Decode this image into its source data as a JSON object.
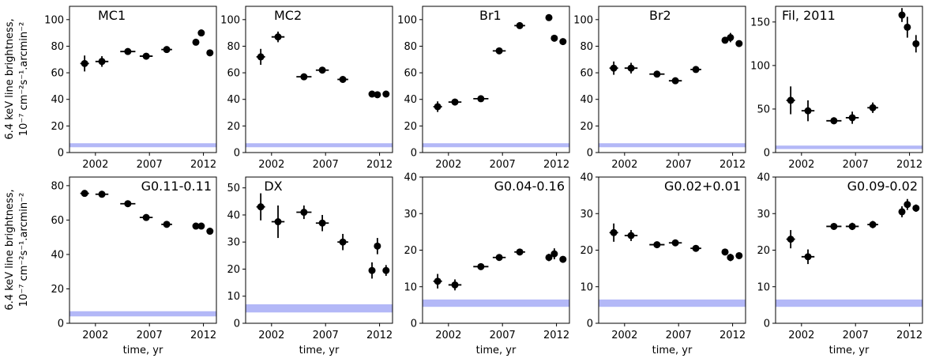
{
  "figure": {
    "ylabel_line1": "6.4 keV line brightness,",
    "ylabel_line2": "10⁻⁷ cm⁻²s⁻¹.arcmin⁻²",
    "xlabel": "time, yr"
  },
  "chart_data": [
    {
      "type": "scatter",
      "title": "MC1",
      "xlabel": "",
      "ylabel": "6.4 keV line brightness, 10⁻⁷ cm⁻²s⁻¹.arcmin⁻²",
      "xlim": [
        1999.6,
        2013.2
      ],
      "ylim": [
        0,
        110
      ],
      "xticks": [
        2002,
        2007,
        2012
      ],
      "yticks": [
        0,
        20,
        40,
        60,
        80,
        100
      ],
      "background_band": [
        4,
        7
      ],
      "band_color": "#b3b8f7",
      "points": [
        {
          "x": 2001.0,
          "y": 67,
          "yerr": 6,
          "xerr": 0.4
        },
        {
          "x": 2002.6,
          "y": 68.5,
          "yerr": 4,
          "xerr": 0.6
        },
        {
          "x": 2005.0,
          "y": 76,
          "yerr": 1.5,
          "xerr": 0.7
        },
        {
          "x": 2006.7,
          "y": 72.5,
          "yerr": 1.5,
          "xerr": 0.6
        },
        {
          "x": 2008.6,
          "y": 77.5,
          "yerr": 1.5,
          "xerr": 0.5
        },
        {
          "x": 2011.3,
          "y": 83,
          "yerr": 2,
          "xerr": 0.2
        },
        {
          "x": 2011.8,
          "y": 90,
          "yerr": 2.5,
          "xerr": 0.2
        },
        {
          "x": 2012.6,
          "y": 75,
          "yerr": 1.5,
          "xerr": 0.2
        }
      ]
    },
    {
      "type": "scatter",
      "title": "MC2",
      "xlabel": "",
      "ylabel": "",
      "xlim": [
        1999.6,
        2013.2
      ],
      "ylim": [
        0,
        110
      ],
      "xticks": [
        2002,
        2007,
        2012
      ],
      "yticks": [
        0,
        20,
        40,
        60,
        80,
        100
      ],
      "background_band": [
        4,
        7
      ],
      "band_color": "#b3b8f7",
      "points": [
        {
          "x": 2001.0,
          "y": 72,
          "yerr": 6,
          "xerr": 0.4
        },
        {
          "x": 2002.6,
          "y": 87,
          "yerr": 4,
          "xerr": 0.6
        },
        {
          "x": 2005.0,
          "y": 57,
          "yerr": 1.5,
          "xerr": 0.7
        },
        {
          "x": 2006.7,
          "y": 62,
          "yerr": 1.5,
          "xerr": 0.6
        },
        {
          "x": 2008.6,
          "y": 55,
          "yerr": 1.5,
          "xerr": 0.5
        },
        {
          "x": 2011.3,
          "y": 44,
          "yerr": 1.5,
          "xerr": 0.2
        },
        {
          "x": 2011.8,
          "y": 43.5,
          "yerr": 1.5,
          "xerr": 0.2
        },
        {
          "x": 2012.6,
          "y": 44,
          "yerr": 1.5,
          "xerr": 0.2
        }
      ]
    },
    {
      "type": "scatter",
      "title": "Br1",
      "xlabel": "",
      "ylabel": "",
      "xlim": [
        1999.6,
        2013.2
      ],
      "ylim": [
        0,
        110
      ],
      "xticks": [
        2002,
        2007,
        2012
      ],
      "yticks": [
        0,
        20,
        40,
        60,
        80,
        100
      ],
      "background_band": [
        4,
        7
      ],
      "band_color": "#b3b8f7",
      "points": [
        {
          "x": 2001.0,
          "y": 34.5,
          "yerr": 4,
          "xerr": 0.4
        },
        {
          "x": 2002.6,
          "y": 38,
          "yerr": 2.5,
          "xerr": 0.6
        },
        {
          "x": 2005.0,
          "y": 40.5,
          "yerr": 1.5,
          "xerr": 0.7
        },
        {
          "x": 2006.7,
          "y": 76.5,
          "yerr": 1.5,
          "xerr": 0.6
        },
        {
          "x": 2008.6,
          "y": 95.5,
          "yerr": 1.5,
          "xerr": 0.5
        },
        {
          "x": 2011.3,
          "y": 101.5,
          "yerr": 1.5,
          "xerr": 0.2
        },
        {
          "x": 2011.8,
          "y": 86,
          "yerr": 2.5,
          "xerr": 0.2
        },
        {
          "x": 2012.6,
          "y": 83.5,
          "yerr": 1.5,
          "xerr": 0.2
        }
      ]
    },
    {
      "type": "scatter",
      "title": "Br2",
      "xlabel": "",
      "ylabel": "",
      "xlim": [
        1999.6,
        2013.2
      ],
      "ylim": [
        0,
        110
      ],
      "xticks": [
        2002,
        2007,
        2012
      ],
      "yticks": [
        0,
        20,
        40,
        60,
        80,
        100
      ],
      "background_band": [
        4,
        7
      ],
      "band_color": "#b3b8f7",
      "points": [
        {
          "x": 2001.0,
          "y": 63.5,
          "yerr": 5,
          "xerr": 0.4
        },
        {
          "x": 2002.6,
          "y": 63.5,
          "yerr": 4,
          "xerr": 0.6
        },
        {
          "x": 2005.0,
          "y": 59,
          "yerr": 1.5,
          "xerr": 0.7
        },
        {
          "x": 2006.7,
          "y": 54,
          "yerr": 1.5,
          "xerr": 0.6
        },
        {
          "x": 2008.6,
          "y": 62.5,
          "yerr": 1.5,
          "xerr": 0.5
        },
        {
          "x": 2011.3,
          "y": 84.5,
          "yerr": 2,
          "xerr": 0.2
        },
        {
          "x": 2011.8,
          "y": 86.5,
          "yerr": 3.5,
          "xerr": 0.2
        },
        {
          "x": 2012.6,
          "y": 82,
          "yerr": 1.5,
          "xerr": 0.2
        }
      ]
    },
    {
      "type": "scatter",
      "title": "Fil, 2011",
      "xlabel": "",
      "ylabel": "",
      "xlim": [
        1999.6,
        2013.2
      ],
      "ylim": [
        0,
        168
      ],
      "xticks": [
        2002,
        2007,
        2012
      ],
      "yticks": [
        0,
        50,
        100,
        150
      ],
      "background_band": [
        4,
        8
      ],
      "band_color": "#b3b8f7",
      "points": [
        {
          "x": 2001.0,
          "y": 60,
          "yerr": 16,
          "xerr": 0.4
        },
        {
          "x": 2002.6,
          "y": 48,
          "yerr": 12,
          "xerr": 0.6
        },
        {
          "x": 2005.0,
          "y": 36.5,
          "yerr": 4,
          "xerr": 0.7
        },
        {
          "x": 2006.7,
          "y": 40,
          "yerr": 7,
          "xerr": 0.6
        },
        {
          "x": 2008.6,
          "y": 51.5,
          "yerr": 6,
          "xerr": 0.5
        },
        {
          "x": 2011.3,
          "y": 158,
          "yerr": 8,
          "xerr": 0.2
        },
        {
          "x": 2011.8,
          "y": 144,
          "yerr": 12,
          "xerr": 0.2
        },
        {
          "x": 2012.6,
          "y": 125,
          "yerr": 10,
          "xerr": 0.2
        }
      ]
    },
    {
      "type": "scatter",
      "title": "G0.11-0.11",
      "xlabel": "time, yr",
      "ylabel": "6.4 keV line brightness, 10⁻⁷ cm⁻²s⁻¹.arcmin⁻²",
      "xlim": [
        1999.6,
        2013.2
      ],
      "ylim": [
        0,
        85
      ],
      "xticks": [
        2002,
        2007,
        2012
      ],
      "yticks": [
        0,
        20,
        40,
        60,
        80
      ],
      "background_band": [
        4,
        7
      ],
      "band_color": "#b3b8f7",
      "points": [
        {
          "x": 2001.0,
          "y": 75.5,
          "yerr": 1.5,
          "xerr": 0.4
        },
        {
          "x": 2002.6,
          "y": 75,
          "yerr": 1.5,
          "xerr": 0.6
        },
        {
          "x": 2005.0,
          "y": 69.5,
          "yerr": 1.5,
          "xerr": 0.7
        },
        {
          "x": 2006.7,
          "y": 61.5,
          "yerr": 1.5,
          "xerr": 0.6
        },
        {
          "x": 2008.6,
          "y": 57.5,
          "yerr": 1.5,
          "xerr": 0.5
        },
        {
          "x": 2011.3,
          "y": 56.5,
          "yerr": 1.5,
          "xerr": 0.2
        },
        {
          "x": 2011.8,
          "y": 56.5,
          "yerr": 1.5,
          "xerr": 0.2
        },
        {
          "x": 2012.6,
          "y": 53.5,
          "yerr": 1.5,
          "xerr": 0.2
        }
      ]
    },
    {
      "type": "scatter",
      "title": "DX",
      "xlabel": "time, yr",
      "ylabel": "",
      "xlim": [
        1999.6,
        2013.2
      ],
      "ylim": [
        0,
        54
      ],
      "xticks": [
        2002,
        2007,
        2012
      ],
      "yticks": [
        0,
        10,
        20,
        30,
        40,
        50
      ],
      "background_band": [
        4,
        7
      ],
      "band_color": "#b3b8f7",
      "points": [
        {
          "x": 2001.0,
          "y": 43,
          "yerr": 5,
          "xerr": 0.4
        },
        {
          "x": 2002.6,
          "y": 37.5,
          "yerr": 6,
          "xerr": 0.6
        },
        {
          "x": 2005.0,
          "y": 41,
          "yerr": 2.5,
          "xerr": 0.7
        },
        {
          "x": 2006.7,
          "y": 37,
          "yerr": 3,
          "xerr": 0.6
        },
        {
          "x": 2008.6,
          "y": 30,
          "yerr": 3,
          "xerr": 0.5
        },
        {
          "x": 2011.3,
          "y": 19.5,
          "yerr": 3,
          "xerr": 0.2
        },
        {
          "x": 2011.8,
          "y": 28.5,
          "yerr": 3,
          "xerr": 0.2
        },
        {
          "x": 2012.6,
          "y": 19.5,
          "yerr": 2,
          "xerr": 0.2
        }
      ]
    },
    {
      "type": "scatter",
      "title": "G0.04-0.16",
      "xlabel": "time, yr",
      "ylabel": "",
      "xlim": [
        1999.6,
        2013.2
      ],
      "ylim": [
        0,
        40
      ],
      "xticks": [
        2002,
        2007,
        2012
      ],
      "yticks": [
        0,
        10,
        20,
        30,
        40
      ],
      "background_band": [
        4.5,
        6.5
      ],
      "band_color": "#b3b8f7",
      "points": [
        {
          "x": 2001.0,
          "y": 11.5,
          "yerr": 2,
          "xerr": 0.4
        },
        {
          "x": 2002.6,
          "y": 10.5,
          "yerr": 1.5,
          "xerr": 0.6
        },
        {
          "x": 2005.0,
          "y": 15.5,
          "yerr": 0.7,
          "xerr": 0.7
        },
        {
          "x": 2006.7,
          "y": 18,
          "yerr": 0.7,
          "xerr": 0.6
        },
        {
          "x": 2008.6,
          "y": 19.5,
          "yerr": 0.7,
          "xerr": 0.5
        },
        {
          "x": 2011.3,
          "y": 18,
          "yerr": 1,
          "xerr": 0.2
        },
        {
          "x": 2011.8,
          "y": 19,
          "yerr": 1.5,
          "xerr": 0.2
        },
        {
          "x": 2012.6,
          "y": 17.5,
          "yerr": 0.8,
          "xerr": 0.2
        }
      ]
    },
    {
      "type": "scatter",
      "title": "G0.02+0.01",
      "xlabel": "time, yr",
      "ylabel": "",
      "xlim": [
        1999.6,
        2013.2
      ],
      "ylim": [
        0,
        40
      ],
      "xticks": [
        2002,
        2007,
        2012
      ],
      "yticks": [
        0,
        10,
        20,
        30,
        40
      ],
      "background_band": [
        4.5,
        6.5
      ],
      "band_color": "#b3b8f7",
      "points": [
        {
          "x": 2001.0,
          "y": 24.8,
          "yerr": 2.5,
          "xerr": 0.4
        },
        {
          "x": 2002.6,
          "y": 24,
          "yerr": 1.5,
          "xerr": 0.6
        },
        {
          "x": 2005.0,
          "y": 21.5,
          "yerr": 0.7,
          "xerr": 0.7
        },
        {
          "x": 2006.7,
          "y": 22,
          "yerr": 0.7,
          "xerr": 0.6
        },
        {
          "x": 2008.6,
          "y": 20.5,
          "yerr": 0.7,
          "xerr": 0.5
        },
        {
          "x": 2011.3,
          "y": 19.5,
          "yerr": 0.8,
          "xerr": 0.2
        },
        {
          "x": 2011.8,
          "y": 18,
          "yerr": 1,
          "xerr": 0.2
        },
        {
          "x": 2012.6,
          "y": 18.5,
          "yerr": 0.8,
          "xerr": 0.2
        }
      ]
    },
    {
      "type": "scatter",
      "title": "G0.09-0.02",
      "xlabel": "time, yr",
      "ylabel": "",
      "xlim": [
        1999.6,
        2013.2
      ],
      "ylim": [
        0,
        40
      ],
      "xticks": [
        2002,
        2007,
        2012
      ],
      "yticks": [
        0,
        10,
        20,
        30,
        40
      ],
      "background_band": [
        4.5,
        6.5
      ],
      "band_color": "#b3b8f7",
      "points": [
        {
          "x": 2001.0,
          "y": 23,
          "yerr": 2.5,
          "xerr": 0.4
        },
        {
          "x": 2002.6,
          "y": 18.2,
          "yerr": 2,
          "xerr": 0.6
        },
        {
          "x": 2005.0,
          "y": 26.5,
          "yerr": 0.8,
          "xerr": 0.7
        },
        {
          "x": 2006.7,
          "y": 26.5,
          "yerr": 1,
          "xerr": 0.6
        },
        {
          "x": 2008.6,
          "y": 27,
          "yerr": 1,
          "xerr": 0.5
        },
        {
          "x": 2011.3,
          "y": 30.5,
          "yerr": 1.5,
          "xerr": 0.2
        },
        {
          "x": 2011.8,
          "y": 32.5,
          "yerr": 1.5,
          "xerr": 0.2
        },
        {
          "x": 2012.6,
          "y": 31.5,
          "yerr": 1,
          "xerr": 0.2
        }
      ]
    }
  ]
}
